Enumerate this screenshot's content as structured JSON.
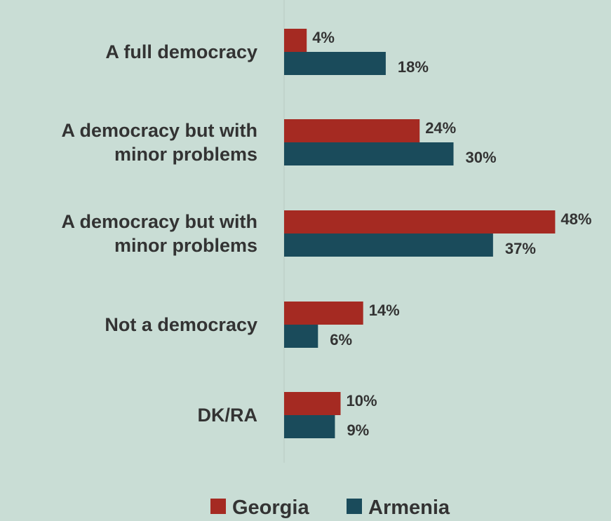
{
  "chart_data": {
    "type": "bar",
    "orientation": "horizontal",
    "categories": [
      [
        "A full democracy"
      ],
      [
        "A democracy but with",
        "minor problems"
      ],
      [
        "A democracy but with",
        "minor problems"
      ],
      [
        "Not a democracy"
      ],
      [
        "DK/RA"
      ]
    ],
    "series": [
      {
        "name": "Georgia",
        "color": "#a52a22",
        "values": [
          4,
          24,
          48,
          14,
          10
        ],
        "labels": [
          "4%",
          "24%",
          "48%",
          "14%",
          "10%"
        ]
      },
      {
        "name": "Armenia",
        "color": "#1a4b5b",
        "values": [
          18,
          30,
          37,
          6,
          9
        ],
        "labels": [
          "18%",
          "30%",
          "37%",
          "6%",
          "9%"
        ]
      }
    ],
    "xlim": [
      0,
      50
    ],
    "grid": false,
    "legend_position": "bottom",
    "title": "",
    "xlabel": "",
    "ylabel": ""
  }
}
